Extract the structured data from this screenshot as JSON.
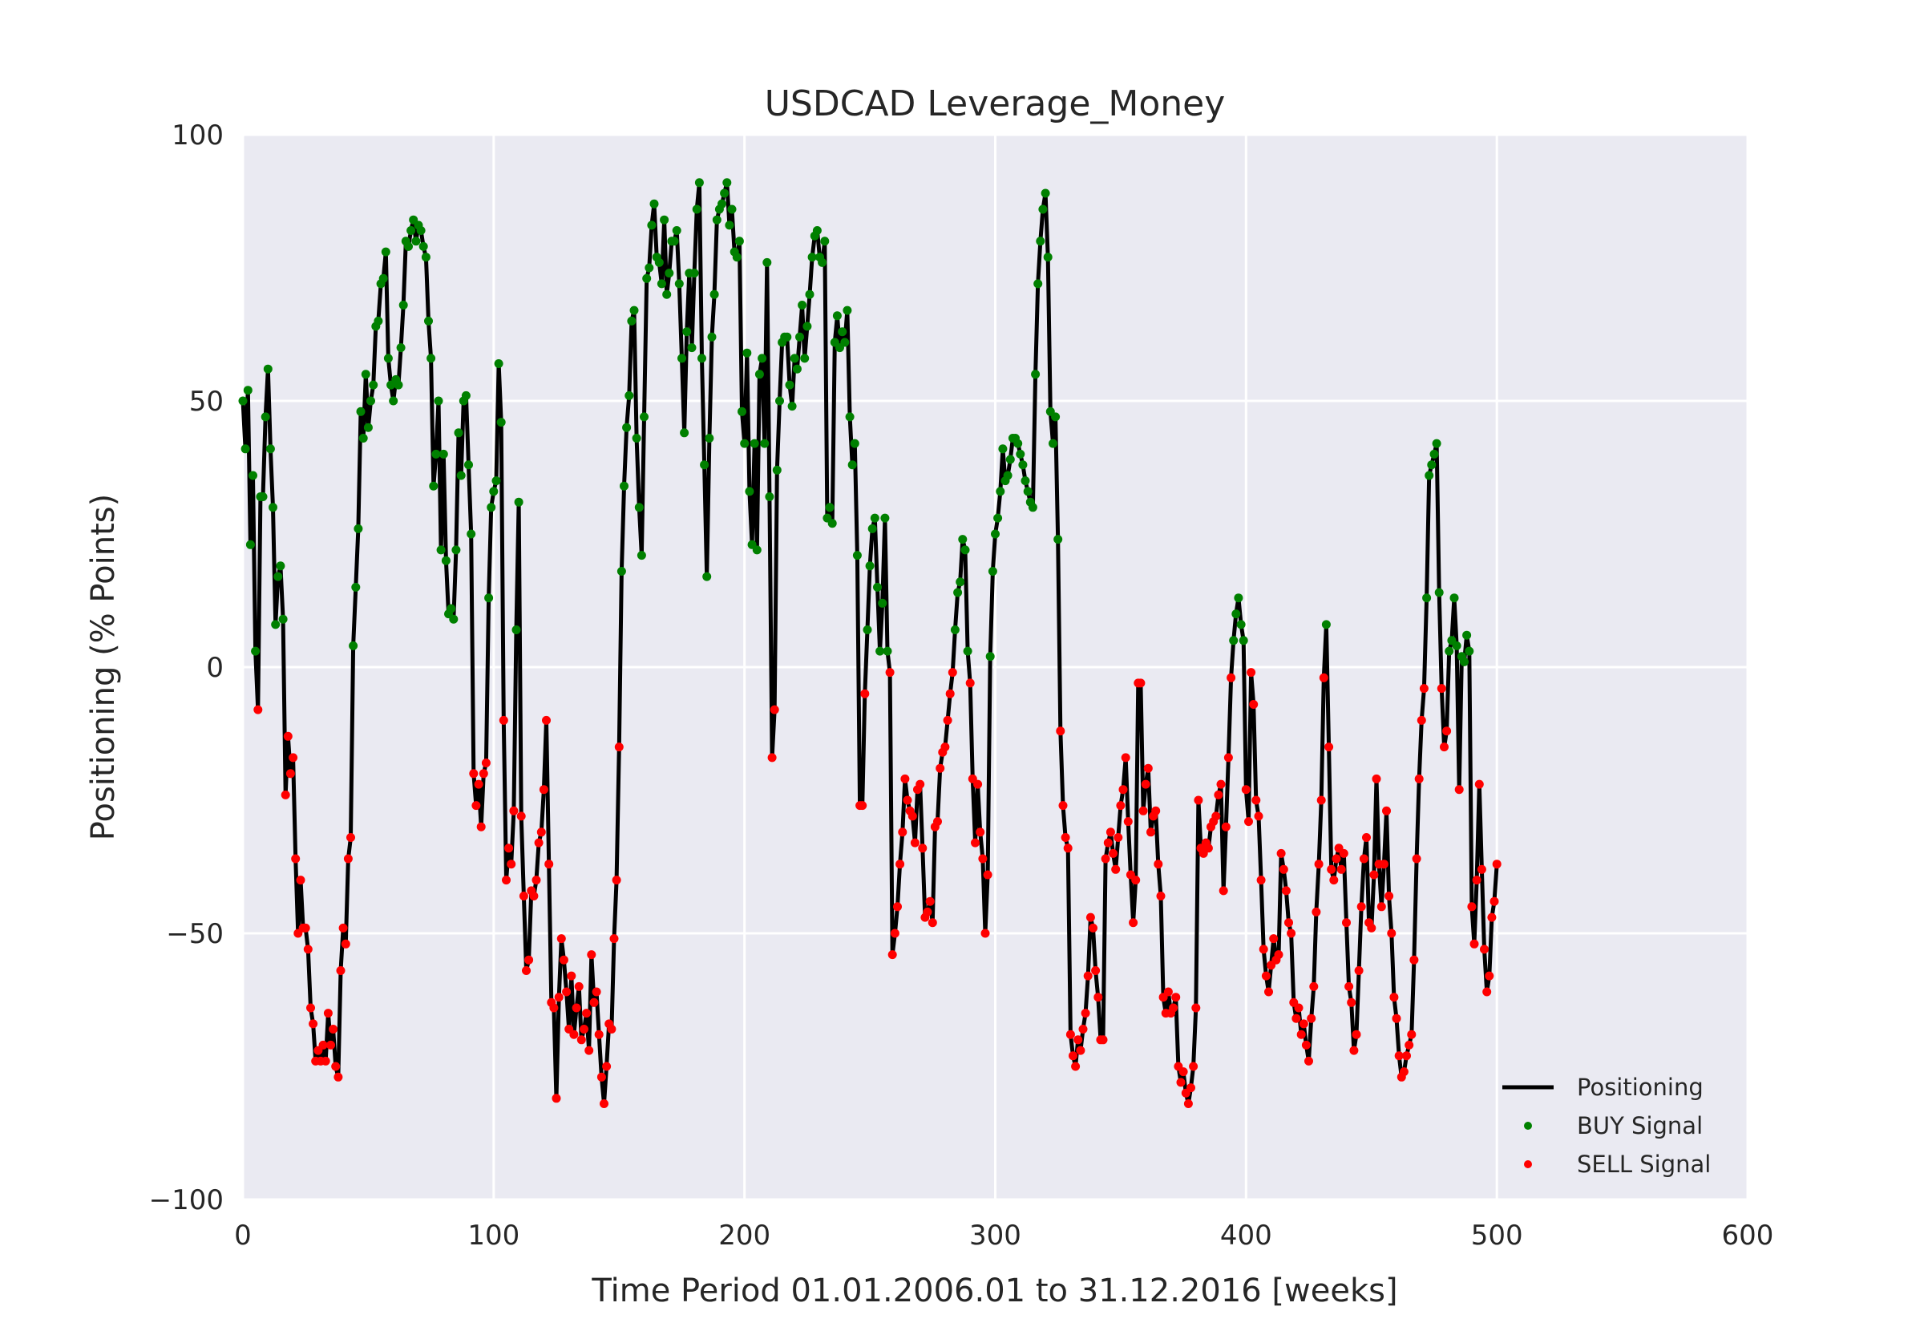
{
  "chart_data": {
    "type": "line",
    "title": "USDCAD Leverage_Money",
    "xlabel": "Time Period 01.01.2006.01 to 31.12.2016 [weeks]",
    "ylabel": "Positioning (% Points)",
    "xlim": [
      0,
      600
    ],
    "ylim": [
      -100,
      100
    ],
    "xticks": [
      0,
      100,
      200,
      300,
      400,
      500,
      600
    ],
    "yticks": [
      -100,
      -50,
      0,
      50,
      100
    ],
    "xtick_labels": [
      "0",
      "100",
      "200",
      "300",
      "400",
      "500",
      "600"
    ],
    "ytick_labels": [
      "−100",
      "−50",
      "0",
      "50",
      "100"
    ],
    "grid": true,
    "legend_position": "bottom-right",
    "colors": {
      "background": "#eaeaf2",
      "grid": "#ffffff",
      "positioning": "#000000",
      "buy": "#008000",
      "sell": "#ff0000"
    },
    "legend": [
      {
        "label": "Positioning",
        "marker": "line",
        "color": "#000000"
      },
      {
        "label": "BUY Signal",
        "marker": "dot",
        "color": "#008000"
      },
      {
        "label": "SELL Signal",
        "marker": "dot",
        "color": "#ff0000"
      }
    ],
    "series": [
      {
        "name": "Positioning",
        "x_start": 0,
        "x_step": 1,
        "values": [
          50,
          41,
          52,
          23,
          36,
          3,
          -8,
          32,
          32,
          47,
          56,
          41,
          30,
          8,
          17,
          19,
          9,
          -24,
          -13,
          -20,
          -17,
          -36,
          -50,
          -40,
          -49,
          -49,
          -53,
          -64,
          -67,
          -74,
          -72,
          -74,
          -71,
          -74,
          -65,
          -71,
          -68,
          -75,
          -77,
          -57,
          -49,
          -52,
          -36,
          -32,
          4,
          15,
          26,
          48,
          43,
          55,
          45,
          50,
          53,
          64,
          65,
          72,
          73,
          78,
          58,
          53,
          50,
          54,
          53,
          60,
          68,
          80,
          79,
          82,
          84,
          80,
          83,
          82,
          79,
          77,
          65,
          58,
          34,
          40,
          50,
          22,
          40,
          20,
          10,
          11,
          9,
          22,
          44,
          36,
          50,
          51,
          38,
          25,
          -20,
          -26,
          -22,
          -30,
          -20,
          -18,
          13,
          30,
          33,
          35,
          57,
          46,
          -10,
          -40,
          -34,
          -37,
          -27,
          7,
          31,
          -28,
          -43,
          -57,
          -55,
          -42,
          -43,
          -40,
          -33,
          -31,
          -23,
          -10,
          -37,
          -63,
          -64,
          -81,
          -62,
          -51,
          -55,
          -61,
          -68,
          -58,
          -69,
          -64,
          -60,
          -70,
          -68,
          -65,
          -72,
          -54,
          -63,
          -61,
          -69,
          -77,
          -82,
          -75,
          -67,
          -68,
          -51,
          -40,
          -15,
          18,
          34,
          45,
          51,
          65,
          67,
          43,
          30,
          21,
          47,
          73,
          75,
          83,
          87,
          77,
          76,
          72,
          84,
          70,
          74,
          80,
          80,
          82,
          72,
          58,
          44,
          63,
          74,
          60,
          74,
          86,
          91,
          58,
          38,
          17,
          43,
          62,
          70,
          84,
          86,
          87,
          89,
          91,
          83,
          86,
          78,
          77,
          80,
          48,
          42,
          59,
          33,
          23,
          42,
          22,
          55,
          58,
          42,
          76,
          32,
          -17,
          -8,
          37,
          50,
          61,
          62,
          62,
          53,
          49,
          58,
          56,
          62,
          68,
          58,
          64,
          70,
          77,
          81,
          82,
          77,
          76,
          80,
          28,
          30,
          27,
          61,
          66,
          60,
          63,
          61,
          67,
          47,
          38,
          42,
          21,
          -26,
          -26,
          -5,
          7,
          19,
          26,
          28,
          15,
          3,
          12,
          28,
          3,
          -1,
          -54,
          -50,
          -45,
          -37,
          -31,
          -21,
          -25,
          -27,
          -28,
          -33,
          -23,
          -22,
          -34,
          -47,
          -46,
          -44,
          -48,
          -30,
          -29,
          -19,
          -16,
          -15,
          -10,
          -5,
          -1,
          7,
          14,
          16,
          24,
          22,
          3,
          -3,
          -21,
          -33,
          -22,
          -31,
          -36,
          -50,
          -39,
          2,
          18,
          25,
          28,
          33,
          41,
          35,
          36,
          39,
          43,
          43,
          42,
          40,
          38,
          35,
          33,
          31,
          30,
          55,
          72,
          80,
          86,
          89,
          77,
          48,
          42,
          47,
          24,
          -12,
          -26,
          -32,
          -34,
          -69,
          -73,
          -75,
          -70,
          -72,
          -68,
          -65,
          -58,
          -47,
          -49,
          -57,
          -62,
          -70,
          -70,
          -36,
          -33,
          -31,
          -35,
          -38,
          -32,
          -26,
          -23,
          -17,
          -29,
          -39,
          -48,
          -40,
          -3,
          -3,
          -27,
          -22,
          -19,
          -31,
          -28,
          -27,
          -37,
          -43,
          -62,
          -65,
          -61,
          -65,
          -64,
          -62,
          -75,
          -78,
          -76,
          -80,
          -82,
          -79,
          -75,
          -64,
          -25,
          -34,
          -35,
          -33,
          -34,
          -30,
          -29,
          -28,
          -24,
          -22,
          -42,
          -30,
          -17,
          -2,
          5,
          10,
          13,
          8,
          5,
          -23,
          -29,
          -1,
          -7,
          -25,
          -28,
          -40,
          -53,
          -58,
          -61,
          -56,
          -51,
          -55,
          -54,
          -35,
          -38,
          -42,
          -48,
          -50,
          -63,
          -66,
          -64,
          -69,
          -67,
          -71,
          -74,
          -66,
          -60,
          -46,
          -37,
          -25,
          -2,
          8,
          -15,
          -38,
          -40,
          -36,
          -34,
          -38,
          -35,
          -48,
          -60,
          -63,
          -72,
          -69,
          -57,
          -45,
          -36,
          -32,
          -48,
          -49,
          -39,
          -21,
          -37,
          -45,
          -37,
          -27,
          -43,
          -50,
          -62,
          -66,
          -73,
          -77,
          -76,
          -73,
          -71,
          -69,
          -55,
          -36,
          -21,
          -10,
          -4,
          13,
          36,
          38,
          40,
          42,
          14,
          -4,
          -15,
          -12,
          3,
          5,
          13,
          4,
          -23,
          2,
          1,
          6,
          3,
          -45,
          -52,
          -40,
          -22,
          -38,
          -53,
          -61,
          -58,
          -47,
          -44,
          -37
        ],
        "color": "#000000"
      },
      {
        "name": "BUY Signal",
        "color": "#008000",
        "rule": "Positioning at or above 0"
      },
      {
        "name": "SELL Signal",
        "color": "#ff0000",
        "rule": "Positioning below 0"
      }
    ]
  }
}
